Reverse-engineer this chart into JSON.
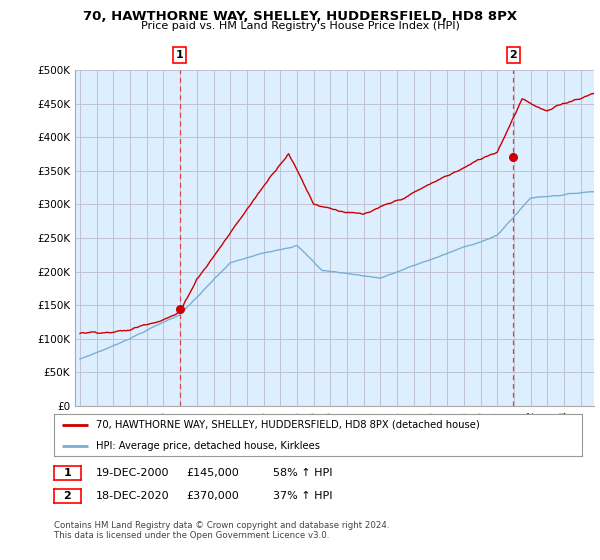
{
  "title": "70, HAWTHORNE WAY, SHELLEY, HUDDERSFIELD, HD8 8PX",
  "subtitle": "Price paid vs. HM Land Registry's House Price Index (HPI)",
  "ylim": [
    0,
    500000
  ],
  "yticks": [
    0,
    50000,
    100000,
    150000,
    200000,
    250000,
    300000,
    350000,
    400000,
    450000,
    500000
  ],
  "ytick_labels": [
    "£0",
    "£50K",
    "£100K",
    "£150K",
    "£200K",
    "£250K",
    "£300K",
    "£350K",
    "£400K",
    "£450K",
    "£500K"
  ],
  "sale1_year": 2000.97,
  "sale1_price": 145000,
  "sale2_year": 2020.97,
  "sale2_price": 370000,
  "legend_line1": "70, HAWTHORNE WAY, SHELLEY, HUDDERSFIELD, HD8 8PX (detached house)",
  "legend_line2": "HPI: Average price, detached house, Kirklees",
  "footnote": "Contains HM Land Registry data © Crown copyright and database right 2024.\nThis data is licensed under the Open Government Licence v3.0.",
  "red_color": "#cc0000",
  "blue_color": "#7bafd4",
  "chart_bg": "#ddeeff",
  "background_color": "#ffffff",
  "grid_color": "#bbbbcc",
  "dashed_color": "#dd4444"
}
